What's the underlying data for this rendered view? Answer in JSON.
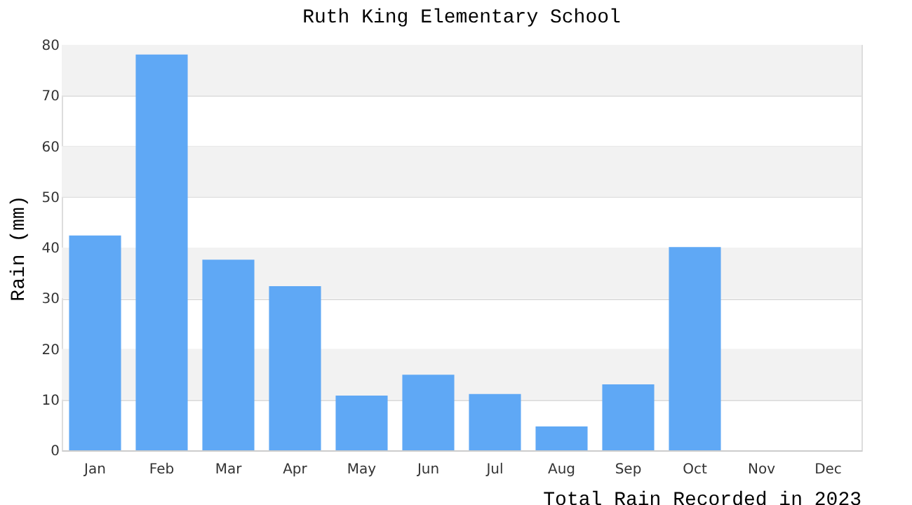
{
  "chart_data": {
    "type": "bar",
    "title": "Ruth King Elementary School",
    "ylabel": "Rain (mm)",
    "categories": [
      "Jan",
      "Feb",
      "Mar",
      "Apr",
      "May",
      "Jun",
      "Jul",
      "Aug",
      "Sep",
      "Oct",
      "Nov",
      "Dec"
    ],
    "values": [
      42.4,
      78.1,
      37.6,
      32.4,
      10.8,
      14.9,
      11.1,
      4.7,
      13.0,
      40.1,
      0,
      0
    ],
    "color": "#5fa8f5",
    "ylim": [
      0,
      80
    ],
    "yticks": [
      0,
      10,
      20,
      30,
      40,
      50,
      60,
      70,
      80
    ],
    "grid": "y",
    "annotations": [
      "Total Rain Recorded in 2023"
    ]
  }
}
